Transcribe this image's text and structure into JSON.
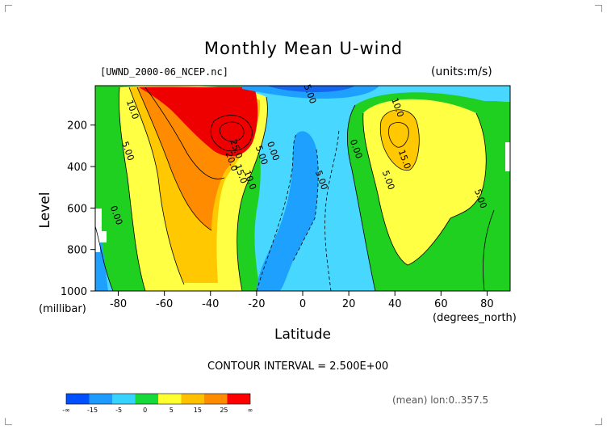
{
  "chart_data": {
    "type": "contour",
    "title": "Monthly Mean U-wind",
    "dataset_label": "[UWND_2000-06_NCEP.nc]",
    "units_label": "(units:m/s)",
    "ylabel": "Level",
    "ylabel_unit": "(millibar)",
    "xlabel": "Latitude",
    "xlabel_unit": "(degrees_north)",
    "xlim": [
      -90,
      90
    ],
    "ylim": [
      1000,
      10
    ],
    "x_ticks": [
      "-80",
      "-60",
      "-40",
      "-20",
      "0",
      "20",
      "40",
      "60",
      "80"
    ],
    "x_tick_values": [
      -80,
      -60,
      -40,
      -20,
      0,
      20,
      40,
      60,
      80
    ],
    "y_ticks": [
      "200",
      "400",
      "600",
      "800",
      "1000"
    ],
    "y_tick_values": [
      200,
      400,
      600,
      800,
      1000
    ],
    "contour_interval_text": "CONTOUR INTERVAL = 2.500E+00",
    "mean_text": "(mean) lon:0..357.5",
    "contour_labels": [
      {
        "text": "10.0",
        "lat": -75,
        "lev": 130
      },
      {
        "text": "5.00",
        "lat": -77,
        "lev": 330
      },
      {
        "text": "0.00",
        "lat": -82,
        "lev": 640
      },
      {
        "text": "25.0",
        "lat": -30,
        "lev": 320
      },
      {
        "text": "20.0",
        "lat": -32,
        "lev": 380
      },
      {
        "text": "15.0",
        "lat": -28,
        "lev": 440
      },
      {
        "text": "10.0",
        "lat": -24,
        "lev": 470
      },
      {
        "text": "5.00",
        "lat": -19,
        "lev": 350
      },
      {
        "text": "0.00",
        "lat": -14,
        "lev": 330
      },
      {
        "text": "5.00",
        "lat": 2,
        "lev": 55
      },
      {
        "text": "5.00",
        "lat": 7,
        "lev": 470
      },
      {
        "text": "0.00",
        "lat": 22,
        "lev": 320
      },
      {
        "text": "10.0",
        "lat": 40,
        "lev": 120
      },
      {
        "text": "15.0",
        "lat": 43,
        "lev": 370
      },
      {
        "text": "5.00",
        "lat": 36,
        "lev": 470
      },
      {
        "text": "5.00",
        "lat": 76,
        "lev": 560
      }
    ],
    "colorbar": {
      "labels": [
        "-∞",
        "-15",
        "-5",
        "0",
        "5",
        "15",
        "25",
        "∞"
      ],
      "colors": [
        "#0050ff",
        "#1e9bff",
        "#38d2ff",
        "#17d93a",
        "#ffff30",
        "#ffc000",
        "#ff8c00",
        "#ff0000"
      ]
    },
    "colors": {
      "deep_blue": "#1464f0",
      "blue": "#1ea0ff",
      "cyan": "#48d7ff",
      "green": "#20d020",
      "yellow": "#ffff44",
      "light_orange": "#ffc800",
      "orange": "#ff8c00",
      "red": "#ee0000"
    }
  }
}
